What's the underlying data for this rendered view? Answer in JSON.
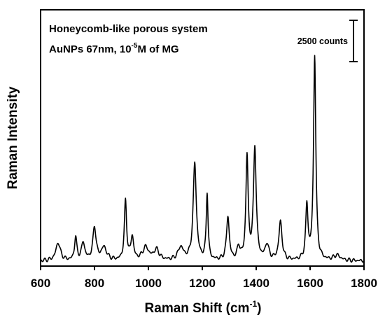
{
  "chart_data": {
    "type": "line",
    "title": "",
    "xlabel": {
      "main": "Raman Shift (cm",
      "sup": "-1",
      "tail": ")"
    },
    "ylabel": "Raman Intensity",
    "xlim": [
      600,
      1800
    ],
    "xticks": [
      600,
      800,
      1000,
      1200,
      1400,
      1600,
      1800
    ],
    "ylim": [
      0,
      100
    ],
    "grid": false,
    "legend": "none",
    "annotations": {
      "line1": "Honeycomb-like porous system",
      "line2_pre": "AuNPs 67nm, 10",
      "line2_sup": "-5",
      "line2_post": "M of MG",
      "scalebar_label": "2500 counts"
    },
    "series": [
      {
        "color": "#000000",
        "peaks": [
          {
            "x": 665,
            "h": 7,
            "w": 10
          },
          {
            "x": 730,
            "h": 9,
            "w": 5
          },
          {
            "x": 758,
            "h": 7,
            "w": 7
          },
          {
            "x": 800,
            "h": 13,
            "w": 7
          },
          {
            "x": 835,
            "h": 5,
            "w": 12
          },
          {
            "x": 915,
            "h": 23,
            "w": 5
          },
          {
            "x": 940,
            "h": 9,
            "w": 6
          },
          {
            "x": 990,
            "h": 5,
            "w": 14
          },
          {
            "x": 1030,
            "h": 4,
            "w": 12
          },
          {
            "x": 1120,
            "h": 5,
            "w": 12
          },
          {
            "x": 1172,
            "h": 38,
            "w": 7
          },
          {
            "x": 1218,
            "h": 26,
            "w": 4
          },
          {
            "x": 1295,
            "h": 17,
            "w": 6
          },
          {
            "x": 1335,
            "h": 5,
            "w": 6
          },
          {
            "x": 1366,
            "h": 40,
            "w": 5
          },
          {
            "x": 1395,
            "h": 44,
            "w": 6
          },
          {
            "x": 1440,
            "h": 6,
            "w": 8
          },
          {
            "x": 1490,
            "h": 15,
            "w": 7
          },
          {
            "x": 1588,
            "h": 21,
            "w": 5
          },
          {
            "x": 1617,
            "h": 80,
            "w": 5
          },
          {
            "x": 1700,
            "h": 2,
            "w": 15
          }
        ],
        "baseline": 2
      }
    ]
  }
}
